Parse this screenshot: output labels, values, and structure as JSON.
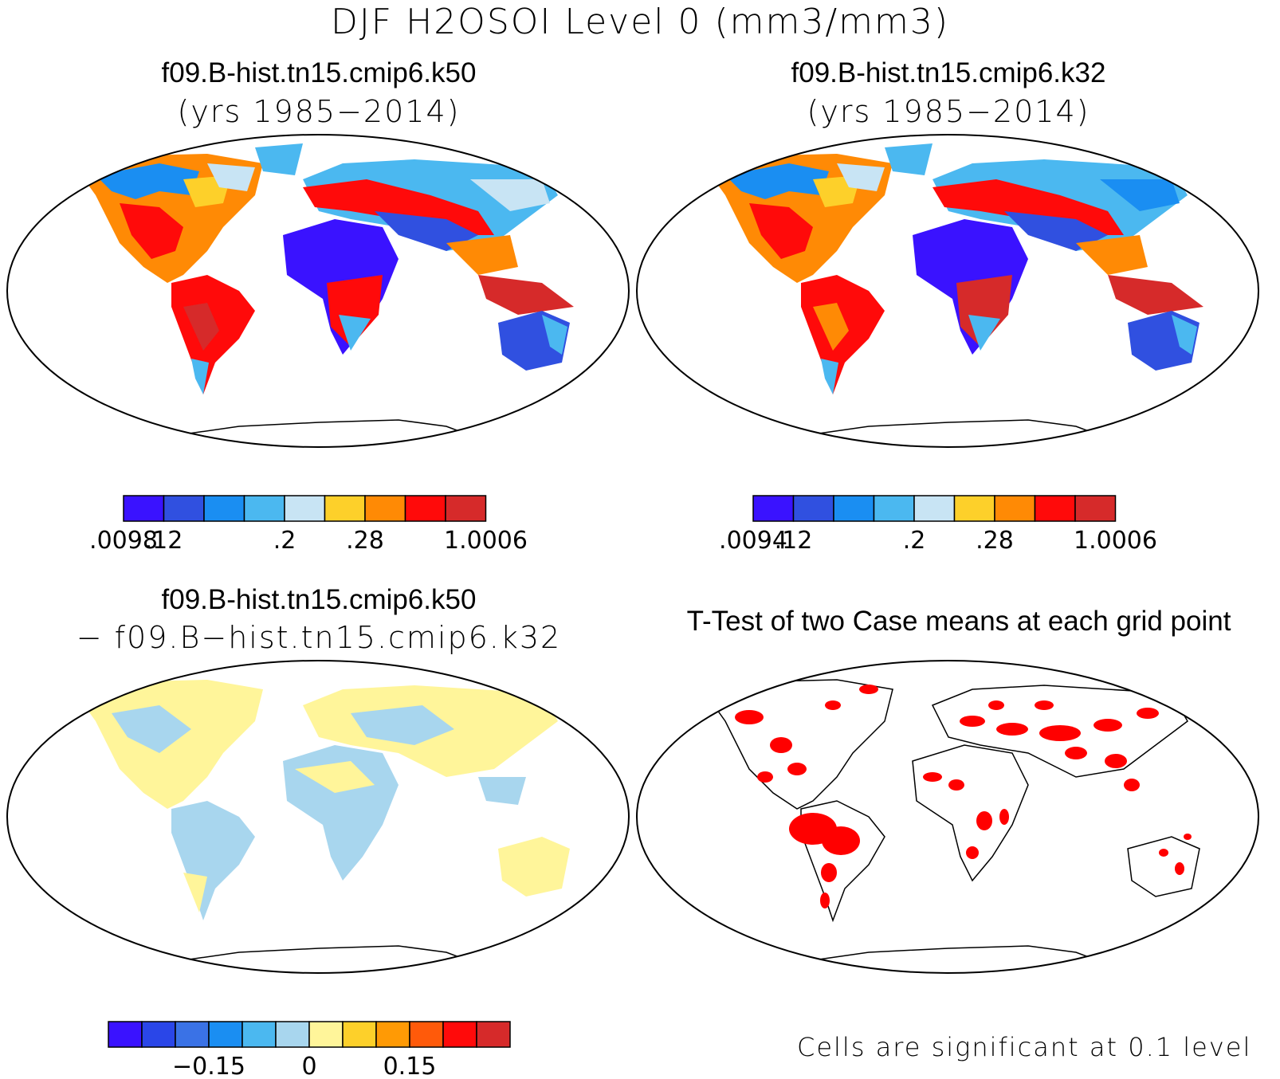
{
  "title": "DJF H2OSOI Level 0 (mm3/mm3)",
  "panels": {
    "top_left": {
      "case": "f09.B-hist.tn15.cmip6.k50",
      "years": "(yrs 1985−2014)",
      "colorbar": {
        "colors": [
          "#3a12ff",
          "#3050e0",
          "#1a8ef2",
          "#4bb8f0",
          "#c8e4f4",
          "#fdd02a",
          "#ff8a05",
          "#ff0a0a",
          "#d62a2a"
        ],
        "tick_labels": [
          ".0098",
          ".12",
          ".2",
          ".28",
          "1.0006"
        ]
      }
    },
    "top_right": {
      "case": "f09.B-hist.tn15.cmip6.k32",
      "years": "(yrs 1985−2014)",
      "colorbar": {
        "colors": [
          "#3a12ff",
          "#3050e0",
          "#1a8ef2",
          "#4bb8f0",
          "#c8e4f4",
          "#fdd02a",
          "#ff8a05",
          "#ff0a0a",
          "#d62a2a"
        ],
        "tick_labels": [
          ".0094",
          ".12",
          ".2",
          ".28",
          "1.0006"
        ]
      }
    },
    "bottom_left": {
      "case": "f09.B-hist.tn15.cmip6.k50",
      "subtitle": "− f09.B−hist.tn15.cmip6.k32",
      "colorbar": {
        "colors": [
          "#3a12ff",
          "#2a46e8",
          "#3a72e6",
          "#1a8ef2",
          "#4bb8f0",
          "#a8d6ee",
          "#fff59a",
          "#fdd02a",
          "#ff9a05",
          "#ff5a0a",
          "#ff0a0a",
          "#d62a2a"
        ],
        "tick_labels": [
          "−0.15",
          "0",
          "0.15"
        ]
      }
    },
    "bottom_right": {
      "title": "T-Test of two Case means at each grid point",
      "note": "Cells are significant at 0.1 level",
      "significant_color": "#ff0000"
    }
  }
}
